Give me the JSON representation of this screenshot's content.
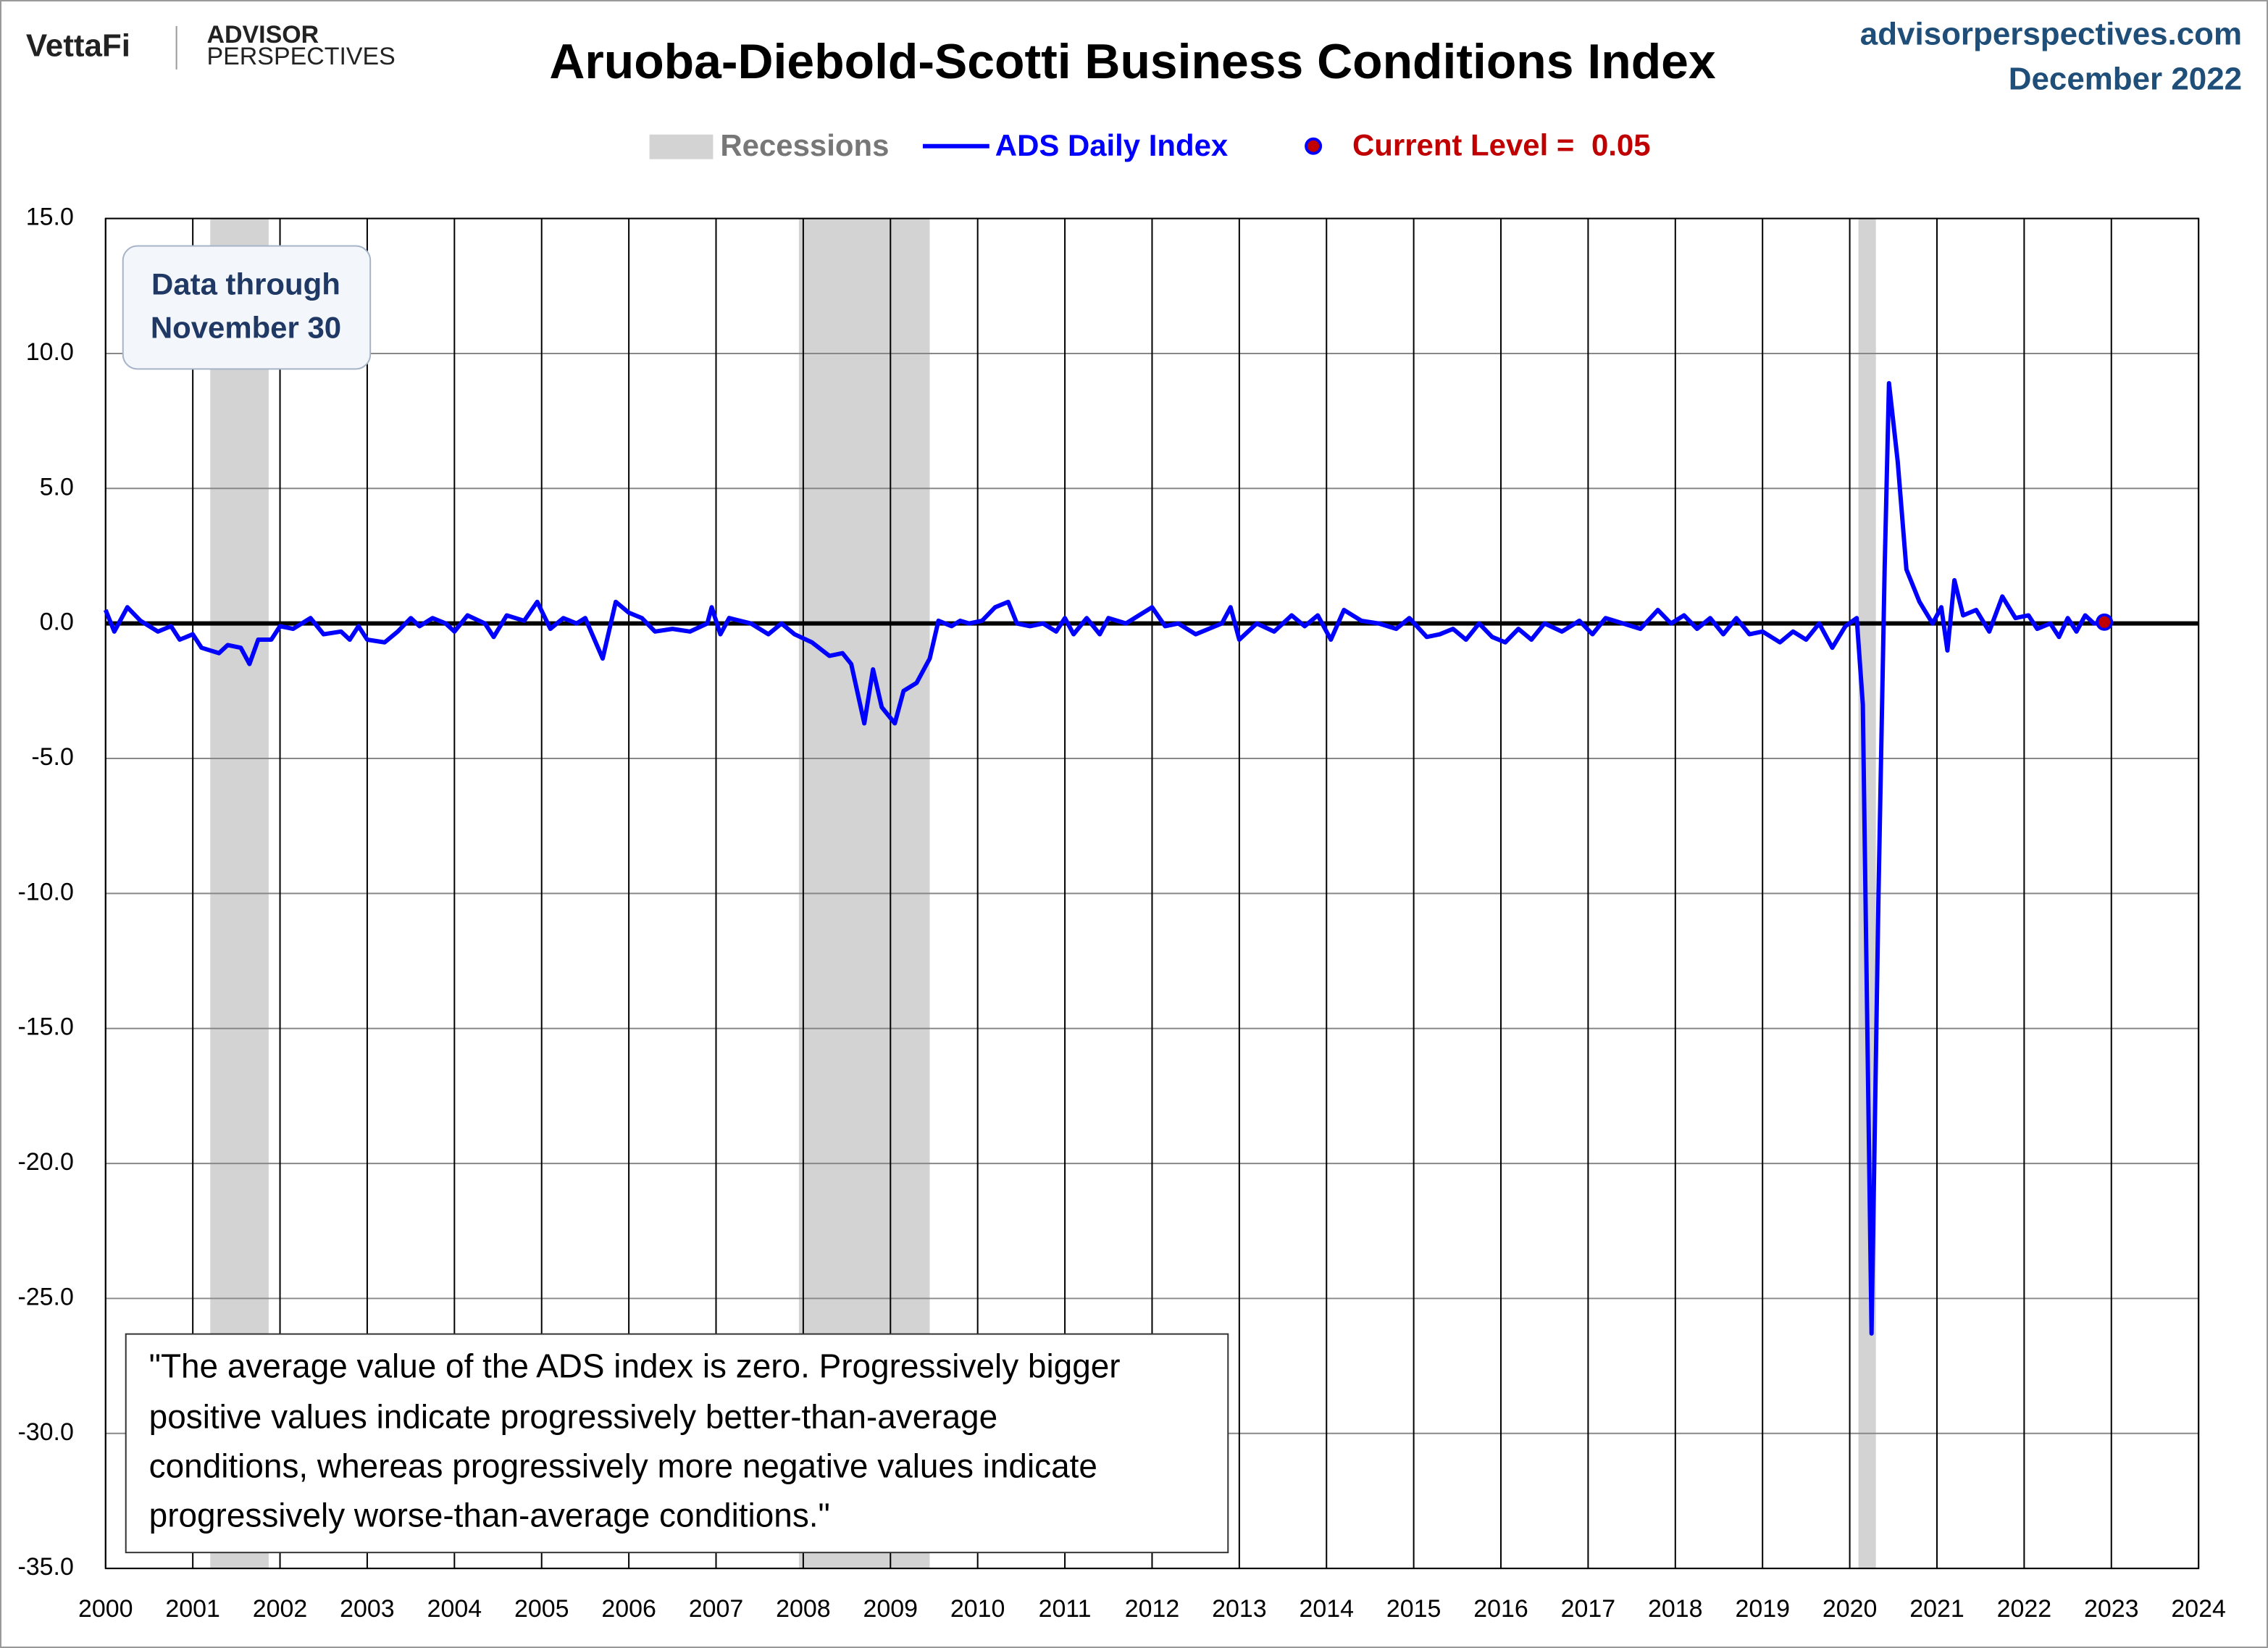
{
  "chart_data": {
    "type": "line",
    "title": "Aruoba-Diebold-Scotti Business Conditions Index",
    "brand": {
      "logo": "VettaFi",
      "advisor": "ADVISOR",
      "perspectives": "PERSPECTIVES",
      "site": "advisorperspectives.com",
      "date": "December 2022"
    },
    "data_note": [
      "Data through",
      "November 30"
    ],
    "note": [
      "\"The average value of the ADS index is zero. Progressively bigger",
      "positive values indicate progressively better-than-average",
      "conditions, whereas progressively more negative values indicate",
      "progressively worse-than-average conditions.\""
    ],
    "recessions": {
      "name": "Recessions",
      "color": "#d3d3d3",
      "ranges": [
        [
          2001.2,
          2001.87
        ],
        [
          2007.95,
          2009.45
        ],
        [
          2020.1,
          2020.3
        ]
      ]
    },
    "x": [
      2000.0,
      2000.1,
      2000.25,
      2000.4,
      2000.6,
      2000.75,
      2000.85,
      2001.0,
      2001.1,
      2001.3,
      2001.4,
      2001.55,
      2001.65,
      2001.75,
      2001.9,
      2002.0,
      2002.15,
      2002.35,
      2002.5,
      2002.7,
      2002.8,
      2002.9,
      2003.0,
      2003.2,
      2003.35,
      2003.5,
      2003.6,
      2003.75,
      2003.9,
      2004.0,
      2004.15,
      2004.35,
      2004.45,
      2004.6,
      2004.8,
      2004.95,
      2005.1,
      2005.25,
      2005.4,
      2005.5,
      2005.7,
      2005.85,
      2006.0,
      2006.15,
      2006.3,
      2006.5,
      2006.7,
      2006.9,
      2006.95,
      2007.05,
      2007.15,
      2007.4,
      2007.6,
      2007.75,
      2007.9,
      2008.1,
      2008.3,
      2008.45,
      2008.55,
      2008.7,
      2008.8,
      2008.9,
      2009.05,
      2009.15,
      2009.3,
      2009.45,
      2009.55,
      2009.7,
      2009.8,
      2009.9,
      2010.05,
      2010.2,
      2010.35,
      2010.45,
      2010.6,
      2010.75,
      2010.9,
      2011.0,
      2011.1,
      2011.25,
      2011.4,
      2011.5,
      2011.7,
      2011.85,
      2012.0,
      2012.15,
      2012.3,
      2012.5,
      2012.65,
      2012.8,
      2012.9,
      2013.0,
      2013.2,
      2013.4,
      2013.6,
      2013.75,
      2013.9,
      2014.05,
      2014.2,
      2014.4,
      2014.6,
      2014.8,
      2014.95,
      2015.15,
      2015.3,
      2015.45,
      2015.6,
      2015.75,
      2015.9,
      2016.05,
      2016.2,
      2016.35,
      2016.5,
      2016.7,
      2016.9,
      2017.05,
      2017.2,
      2017.4,
      2017.6,
      2017.8,
      2017.95,
      2018.1,
      2018.25,
      2018.4,
      2018.55,
      2018.7,
      2018.85,
      2019.0,
      2019.2,
      2019.35,
      2019.5,
      2019.65,
      2019.8,
      2019.95,
      2020.08,
      2020.15,
      2020.25,
      2020.33,
      2020.4,
      2020.45,
      2020.55,
      2020.65,
      2020.8,
      2020.95,
      2021.05,
      2021.12,
      2021.2,
      2021.3,
      2021.45,
      2021.6,
      2021.75,
      2021.9,
      2022.05,
      2022.15,
      2022.3,
      2022.4,
      2022.5,
      2022.6,
      2022.7,
      2022.8,
      2022.92
    ],
    "series": [
      {
        "name": "ADS Daily Index",
        "color": "#0000ff",
        "values": [
          0.5,
          -0.3,
          0.6,
          0.1,
          -0.3,
          -0.1,
          -0.6,
          -0.4,
          -0.9,
          -1.1,
          -0.8,
          -0.9,
          -1.5,
          -0.6,
          -0.6,
          -0.1,
          -0.2,
          0.2,
          -0.4,
          -0.3,
          -0.6,
          -0.1,
          -0.6,
          -0.7,
          -0.3,
          0.2,
          -0.1,
          0.2,
          0.0,
          -0.3,
          0.3,
          0.0,
          -0.5,
          0.3,
          0.1,
          0.8,
          -0.2,
          0.2,
          0.0,
          0.2,
          -1.3,
          0.8,
          0.4,
          0.2,
          -0.3,
          -0.2,
          -0.3,
          0.0,
          0.6,
          -0.4,
          0.2,
          0.0,
          -0.4,
          0.0,
          -0.4,
          -0.7,
          -1.2,
          -1.1,
          -1.5,
          -3.7,
          -1.7,
          -3.1,
          -3.7,
          -2.5,
          -2.2,
          -1.3,
          0.1,
          -0.1,
          0.1,
          0.0,
          0.1,
          0.6,
          0.8,
          0.0,
          -0.1,
          0.0,
          -0.3,
          0.2,
          -0.4,
          0.2,
          -0.4,
          0.2,
          0.0,
          0.3,
          0.6,
          -0.1,
          0.0,
          -0.4,
          -0.2,
          0.0,
          0.6,
          -0.6,
          0.0,
          -0.3,
          0.3,
          -0.1,
          0.3,
          -0.6,
          0.5,
          0.1,
          0.0,
          -0.2,
          0.2,
          -0.5,
          -0.4,
          -0.2,
          -0.6,
          0.0,
          -0.5,
          -0.7,
          -0.2,
          -0.6,
          0.0,
          -0.3,
          0.1,
          -0.4,
          0.2,
          0.0,
          -0.2,
          0.5,
          0.0,
          0.3,
          -0.2,
          0.2,
          -0.4,
          0.2,
          -0.4,
          -0.3,
          -0.7,
          -0.3,
          -0.6,
          0.0,
          -0.9,
          -0.1,
          0.2,
          -3.0,
          -26.3,
          -10.0,
          2.0,
          8.9,
          6.0,
          2.0,
          0.8,
          0.0,
          0.6,
          -1.0,
          1.6,
          0.3,
          0.5,
          -0.3,
          1.0,
          0.2,
          0.3,
          -0.2,
          0.0,
          -0.5,
          0.2,
          -0.3,
          0.3,
          0.0,
          0.05
        ]
      }
    ],
    "current": {
      "label": "Current Level = ",
      "x": 2022.92,
      "value": 0.05,
      "color": "#c00000"
    },
    "xlim": [
      2000,
      2024
    ],
    "xticks": [
      2000,
      2001,
      2002,
      2003,
      2004,
      2005,
      2006,
      2007,
      2008,
      2009,
      2010,
      2011,
      2012,
      2013,
      2014,
      2015,
      2016,
      2017,
      2018,
      2019,
      2020,
      2021,
      2022,
      2023,
      2024
    ],
    "ylim": [
      -35,
      15
    ],
    "yticks": [
      {
        "value": 15,
        "label": "15.0"
      },
      {
        "value": 10,
        "label": "10.0"
      },
      {
        "value": 5,
        "label": "5.0"
      },
      {
        "value": 0,
        "label": "0.0"
      },
      {
        "value": -5,
        "label": "-5.0"
      },
      {
        "value": -10,
        "label": "-10.0"
      },
      {
        "value": -15,
        "label": "-15.0"
      },
      {
        "value": -20,
        "label": "-20.0"
      },
      {
        "value": -25,
        "label": "-25.0"
      },
      {
        "value": -30,
        "label": "-30.0"
      },
      {
        "value": -35,
        "label": "-35.0"
      }
    ],
    "grid": true
  }
}
